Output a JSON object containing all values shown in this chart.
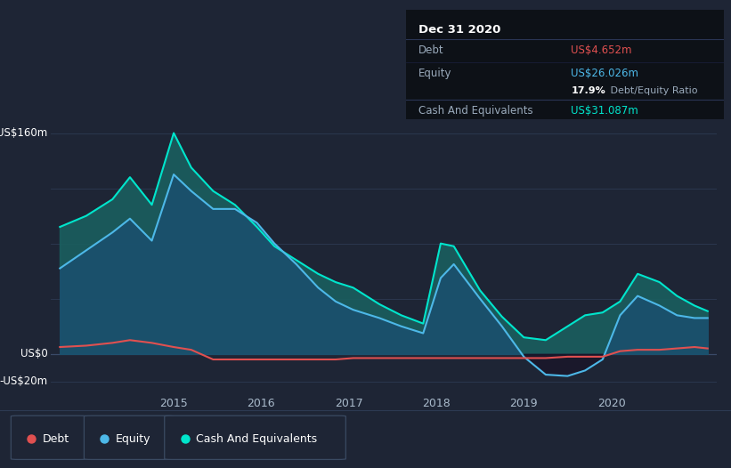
{
  "bg_color": "#1e2535",
  "plot_bg_color": "#1e2535",
  "grid_color": "#2d3a52",
  "debt_color": "#e05050",
  "equity_color": "#4db8e8",
  "cash_color": "#00e5cc",
  "fill_equity_color": "#1a5070",
  "fill_cash_color": "#1a6060",
  "tooltip_bg": "#0d1117",
  "legend_debt": "Debt",
  "legend_equity": "Equity",
  "legend_cash": "Cash And Equivalents",
  "tooltip_title": "Dec 31 2020",
  "tooltip_debt_label": "Debt",
  "tooltip_debt_value": "US$4.652m",
  "tooltip_equity_label": "Equity",
  "tooltip_equity_value": "US$26.026m",
  "tooltip_ratio_bold": "17.9%",
  "tooltip_ratio_light": " Debt/Equity Ratio",
  "tooltip_cash_label": "Cash And Equivalents",
  "tooltip_cash_value": "US$31.087m",
  "ylim_min": -25,
  "ylim_max": 175,
  "xlim_min": 2013.6,
  "xlim_max": 2021.2,
  "x": [
    2013.7,
    2014.0,
    2014.3,
    2014.5,
    2014.75,
    2015.0,
    2015.2,
    2015.45,
    2015.7,
    2015.95,
    2016.15,
    2016.4,
    2016.65,
    2016.85,
    2017.05,
    2017.35,
    2017.6,
    2017.85,
    2018.05,
    2018.2,
    2018.5,
    2018.75,
    2019.0,
    2019.25,
    2019.5,
    2019.7,
    2019.9,
    2020.1,
    2020.3,
    2020.55,
    2020.75,
    2020.95,
    2021.1
  ],
  "debt": [
    5,
    6,
    8,
    10,
    8,
    5,
    3,
    -4,
    -4,
    -4,
    -4,
    -4,
    -4,
    -4,
    -3,
    -3,
    -3,
    -3,
    -3,
    -3,
    -3,
    -3,
    -3,
    -3,
    -2,
    -2,
    -2,
    2,
    3,
    3,
    4,
    5,
    4
  ],
  "equity": [
    62,
    75,
    88,
    98,
    82,
    130,
    118,
    105,
    105,
    95,
    80,
    65,
    48,
    38,
    32,
    26,
    20,
    15,
    55,
    65,
    40,
    20,
    -2,
    -15,
    -16,
    -12,
    -4,
    28,
    42,
    35,
    28,
    26,
    26
  ],
  "cash": [
    92,
    100,
    112,
    128,
    108,
    160,
    135,
    118,
    108,
    92,
    78,
    68,
    58,
    52,
    48,
    36,
    28,
    22,
    80,
    78,
    46,
    27,
    12,
    10,
    20,
    28,
    30,
    38,
    58,
    52,
    42,
    35,
    31
  ]
}
